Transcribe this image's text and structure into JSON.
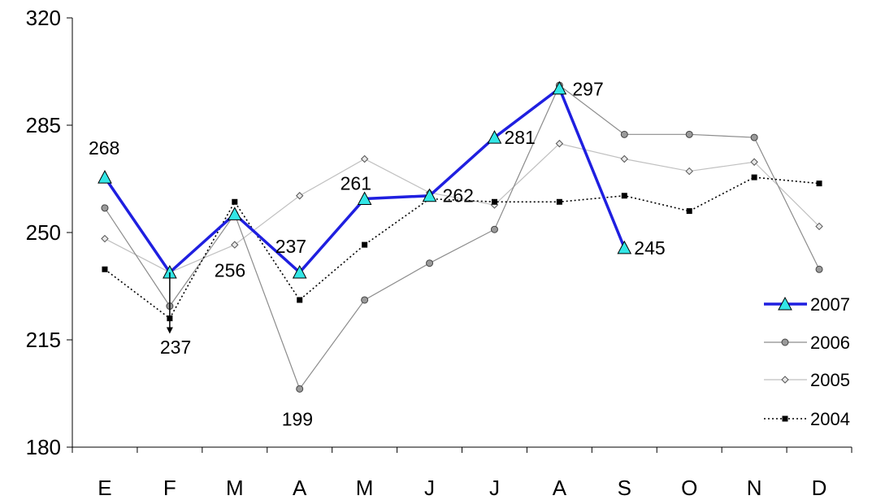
{
  "chart_data": {
    "type": "line",
    "categories": [
      "E",
      "F",
      "M",
      "A",
      "M",
      "J",
      "J",
      "A",
      "S",
      "O",
      "N",
      "D"
    ],
    "ylim": [
      180,
      320
    ],
    "yticks": [
      180,
      215,
      250,
      285,
      320
    ],
    "grid": false,
    "legend_position": "right",
    "series": [
      {
        "name": "2007",
        "values": [
          268,
          237,
          256,
          237,
          261,
          262,
          281,
          297,
          245,
          null,
          null,
          null
        ],
        "color": "#1f1fe0",
        "marker": "triangle",
        "marker_color": "#33e6e6",
        "line_style": "solid"
      },
      {
        "name": "2006",
        "values": [
          258,
          226,
          256,
          199,
          228,
          240,
          251,
          298,
          282,
          282,
          281,
          238
        ],
        "color": "#8c8c8c",
        "marker": "circle",
        "marker_color": "#9a9a9a",
        "line_style": "solid"
      },
      {
        "name": "2005",
        "values": [
          248,
          237,
          246,
          262,
          274,
          263,
          259,
          279,
          274,
          270,
          273,
          252
        ],
        "color": "#c0c0c0",
        "marker": "diamond",
        "marker_color": "#d0d0d0",
        "line_style": "solid"
      },
      {
        "name": "2004",
        "values": [
          238,
          222,
          260,
          228,
          246,
          261,
          260,
          260,
          262,
          257,
          268,
          266
        ],
        "color": "#000000",
        "marker": "square",
        "marker_color": "#000000",
        "line_style": "dotted"
      }
    ],
    "data_labels": [
      {
        "series": "2007",
        "index": 0,
        "text": "268"
      },
      {
        "series": "2007",
        "index": 1,
        "text": "237"
      },
      {
        "series": "2007",
        "index": 2,
        "text": "256"
      },
      {
        "series": "2007",
        "index": 3,
        "text": "237"
      },
      {
        "series": "2007",
        "index": 4,
        "text": "261"
      },
      {
        "series": "2007",
        "index": 5,
        "text": "262"
      },
      {
        "series": "2007",
        "index": 6,
        "text": "281"
      },
      {
        "series": "2007",
        "index": 7,
        "text": "297"
      },
      {
        "series": "2007",
        "index": 8,
        "text": "245"
      },
      {
        "series": "2006",
        "index": 3,
        "text": "199"
      }
    ],
    "annotations": [
      {
        "type": "arrow",
        "category_index": 1,
        "from_value": 237,
        "to_value": 217,
        "direction": "down"
      }
    ]
  }
}
